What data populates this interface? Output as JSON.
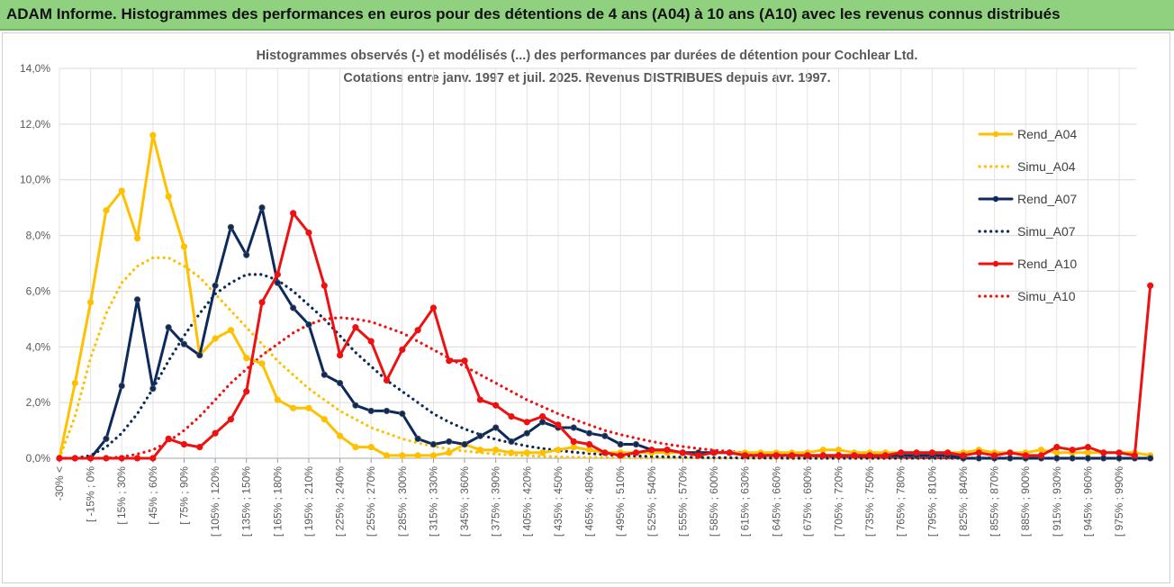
{
  "header": {
    "title": "ADAM Informe. Histogrammes des performances en euros pour des détentions de 4 ans (A04) à 10 ans (A10) avec les revenus connus distribués"
  },
  "chart_data": {
    "type": "line",
    "title": "Histogrammes observés (-) et modélisés (...) des performances par durées de détention pour Cochlear Ltd.",
    "subtitle": "Cotations entre janv. 1997 et juil. 2025. Revenus DISTRIBUES depuis avr. 1997.",
    "ylim": [
      0,
      14
    ],
    "yticks": [
      "0,0%",
      "2,0%",
      "4,0%",
      "6,0%",
      "8,0%",
      "10,0%",
      "12,0%",
      "14,0%"
    ],
    "grid": true,
    "legend_position": "right",
    "xtick_labels": [
      "-30% <",
      "[ -15% ; 0%",
      "[ 15% ; 30%",
      "[ 45% ; 60%",
      "[ 75% ; 90%",
      "[ 105% ; 120%",
      "[ 135% ; 150%",
      "[ 165% ; 180%",
      "[ 195% ; 210%",
      "[ 225% ; 240%",
      "[ 255% ; 270%",
      "[ 285% ; 300%",
      "[ 315% ; 330%",
      "[ 345% ; 360%",
      "[ 375% ; 390%",
      "[ 405% ; 420%",
      "[ 435% ; 450%",
      "[ 465% ; 480%",
      "[ 495% ; 510%",
      "[ 525% ; 540%",
      "[ 555% ; 570%",
      "[ 585% ; 600%",
      "[ 615% ; 630%",
      "[ 645% ; 660%",
      "[ 675% ; 690%",
      "[ 705% ; 720%",
      "[ 735% ; 750%",
      "[ 765% ; 780%",
      "[ 795% ; 810%",
      "[ 825% ; 840%",
      "[ 855% ; 870%",
      "[ 885% ; 900%",
      "[ 915% ; 930%",
      "[ 945% ; 960%",
      "[ 975% ; 990%"
    ],
    "series": [
      {
        "name": "Rend_A04",
        "style": "solid",
        "color": "#ffc000",
        "marker": true,
        "values": [
          0,
          2.7,
          5.6,
          8.9,
          9.6,
          7.9,
          11.6,
          9.4,
          7.6,
          3.7,
          4.3,
          4.6,
          3.6,
          3.4,
          2.1,
          1.8,
          1.8,
          1.4,
          0.8,
          0.4,
          0.4,
          0.1,
          0.1,
          0.1,
          0.1,
          0.2,
          0.5,
          0.3,
          0.3,
          0.2,
          0.2,
          0.2,
          0.3,
          0.4,
          0.3,
          0.2,
          0.2,
          0.2,
          0.2,
          0.2,
          0.2,
          0.2,
          0.2,
          0.2,
          0.2,
          0.2,
          0.2,
          0.2,
          0.2,
          0.3,
          0.3,
          0.2,
          0.2,
          0.2,
          0.2,
          0.2,
          0.2,
          0.2,
          0.2,
          0.3,
          0.2,
          0.2,
          0.2,
          0.3,
          0.2,
          0.2,
          0.2,
          0.2,
          0.2,
          0.2,
          0.1
        ]
      },
      {
        "name": "Simu_A04",
        "style": "dotted",
        "color": "#ffc000",
        "marker": false,
        "values": [
          0,
          1.5,
          3.6,
          5.2,
          6.3,
          6.9,
          7.2,
          7.2,
          6.9,
          6.5,
          5.9,
          5.3,
          4.7,
          4.1,
          3.5,
          3.0,
          2.5,
          2.1,
          1.7,
          1.4,
          1.1,
          0.9,
          0.7,
          0.55,
          0.43,
          0.33,
          0.26,
          0.2,
          0.15,
          0.12,
          0.09,
          0.07,
          0.05,
          0.04,
          0.03,
          0.02,
          0.02,
          0.01,
          0.01,
          0.01,
          0.01,
          0.01,
          0,
          0,
          0,
          0,
          0,
          0,
          0,
          0,
          0,
          0,
          0,
          0,
          0,
          0,
          0,
          0,
          0,
          0,
          0,
          0,
          0,
          0,
          0,
          0,
          0,
          0,
          0,
          0,
          0
        ]
      },
      {
        "name": "Rend_A07",
        "style": "solid",
        "color": "#0d2a5c",
        "marker": true,
        "values": [
          0,
          0,
          0,
          0.7,
          2.6,
          5.7,
          2.5,
          4.7,
          4.1,
          3.7,
          6.2,
          8.3,
          7.3,
          9.0,
          6.3,
          5.4,
          4.8,
          3.0,
          2.7,
          1.9,
          1.7,
          1.7,
          1.6,
          0.7,
          0.5,
          0.6,
          0.5,
          0.8,
          1.1,
          0.6,
          0.9,
          1.3,
          1.1,
          1.1,
          0.9,
          0.8,
          0.5,
          0.5,
          0.3,
          0.3,
          0.2,
          0.2,
          0.2,
          0.2,
          0.1,
          0.1,
          0.1,
          0.1,
          0.1,
          0.1,
          0.1,
          0.1,
          0.1,
          0.1,
          0.1,
          0.1,
          0.1,
          0.1,
          0,
          0,
          0,
          0,
          0,
          0,
          0,
          0,
          0,
          0,
          0,
          0,
          0
        ]
      },
      {
        "name": "Simu_A07",
        "style": "dotted",
        "color": "#0d2a5c",
        "marker": false,
        "values": [
          0,
          0,
          0.1,
          0.4,
          0.9,
          1.6,
          2.5,
          3.5,
          4.4,
          5.2,
          5.9,
          6.3,
          6.6,
          6.6,
          6.4,
          6.0,
          5.5,
          5.0,
          4.4,
          3.8,
          3.3,
          2.8,
          2.4,
          2.0,
          1.6,
          1.3,
          1.05,
          0.85,
          0.68,
          0.55,
          0.44,
          0.35,
          0.28,
          0.22,
          0.17,
          0.13,
          0.1,
          0.08,
          0.06,
          0.05,
          0.04,
          0.03,
          0.02,
          0.02,
          0.01,
          0.01,
          0.01,
          0,
          0,
          0,
          0,
          0,
          0,
          0,
          0,
          0,
          0,
          0,
          0,
          0,
          0,
          0,
          0,
          0,
          0,
          0,
          0,
          0,
          0,
          0,
          0
        ]
      },
      {
        "name": "Rend_A10",
        "style": "solid",
        "color": "#ee1111",
        "marker": true,
        "values": [
          0,
          0,
          0,
          0,
          0,
          0,
          0,
          0.7,
          0.5,
          0.4,
          0.9,
          1.4,
          2.4,
          5.6,
          6.6,
          8.8,
          8.1,
          6.2,
          3.7,
          4.7,
          4.2,
          2.8,
          3.9,
          4.6,
          5.4,
          3.5,
          3.5,
          2.1,
          1.9,
          1.5,
          1.3,
          1.5,
          1.2,
          0.6,
          0.5,
          0.2,
          0.1,
          0.2,
          0.3,
          0.3,
          0.2,
          0.1,
          0.2,
          0.2,
          0.1,
          0.1,
          0.1,
          0.1,
          0.1,
          0.1,
          0.1,
          0.1,
          0.1,
          0.1,
          0.2,
          0.2,
          0.2,
          0.2,
          0.1,
          0.2,
          0.1,
          0.2,
          0.1,
          0.1,
          0.4,
          0.3,
          0.4,
          0.2,
          0.2,
          0.1,
          6.2
        ]
      },
      {
        "name": "Simu_A10",
        "style": "dotted",
        "color": "#ee1111",
        "marker": false,
        "values": [
          0,
          0,
          0,
          0,
          0.05,
          0.15,
          0.3,
          0.6,
          1.0,
          1.5,
          2.1,
          2.7,
          3.2,
          3.7,
          4.1,
          4.5,
          4.8,
          5.0,
          5.05,
          5.0,
          4.9,
          4.7,
          4.5,
          4.2,
          3.9,
          3.6,
          3.3,
          3.0,
          2.7,
          2.4,
          2.1,
          1.85,
          1.6,
          1.4,
          1.2,
          1.0,
          0.85,
          0.72,
          0.6,
          0.5,
          0.42,
          0.35,
          0.29,
          0.24,
          0.2,
          0.16,
          0.13,
          0.11,
          0.09,
          0.07,
          0.06,
          0.05,
          0.04,
          0.03,
          0.03,
          0.02,
          0.02,
          0.01,
          0.01,
          0.01,
          0.01,
          0.01,
          0,
          0,
          0,
          0,
          0,
          0,
          0,
          0,
          0
        ]
      }
    ]
  }
}
